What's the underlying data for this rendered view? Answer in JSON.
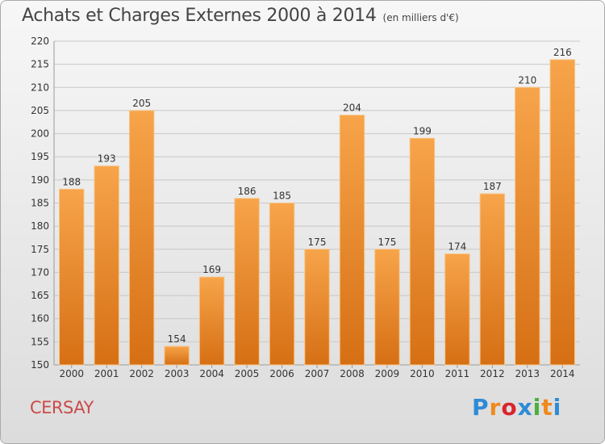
{
  "title": "Achats et Charges Externes 2000 à 2014",
  "unit": "(en milliers d'€)",
  "place": "CERSAY",
  "logo": {
    "text": "Proxiti",
    "letter_colors": [
      "#2e8bd6",
      "#ef8a1d",
      "#d8262e",
      "#2e8bd6",
      "#4cae3c",
      "#ef8a1d",
      "#2e8bd6"
    ]
  },
  "colors": {
    "bar_top": "#f7a44a",
    "bar_bottom": "#d66f14",
    "bar_edge": "#f8c384",
    "grid": "#c8c8c8",
    "axis_text": "#333333",
    "place": "#cc4a4a"
  },
  "chart_data": {
    "type": "bar",
    "title": "Achats et Charges Externes 2000 à 2014",
    "ylabel": "(en milliers d'€)",
    "xlabel": "",
    "categories": [
      "2000",
      "2001",
      "2002",
      "2003",
      "2004",
      "2005",
      "2006",
      "2007",
      "2008",
      "2009",
      "2010",
      "2011",
      "2012",
      "2013",
      "2014"
    ],
    "values": [
      188,
      193,
      205,
      154,
      169,
      186,
      185,
      175,
      204,
      175,
      199,
      174,
      187,
      210,
      216
    ],
    "ylim": [
      150,
      220
    ],
    "yticks": [
      150,
      155,
      160,
      165,
      170,
      175,
      180,
      185,
      190,
      195,
      200,
      205,
      210,
      215,
      220
    ],
    "grid": true,
    "data_labels": true
  }
}
